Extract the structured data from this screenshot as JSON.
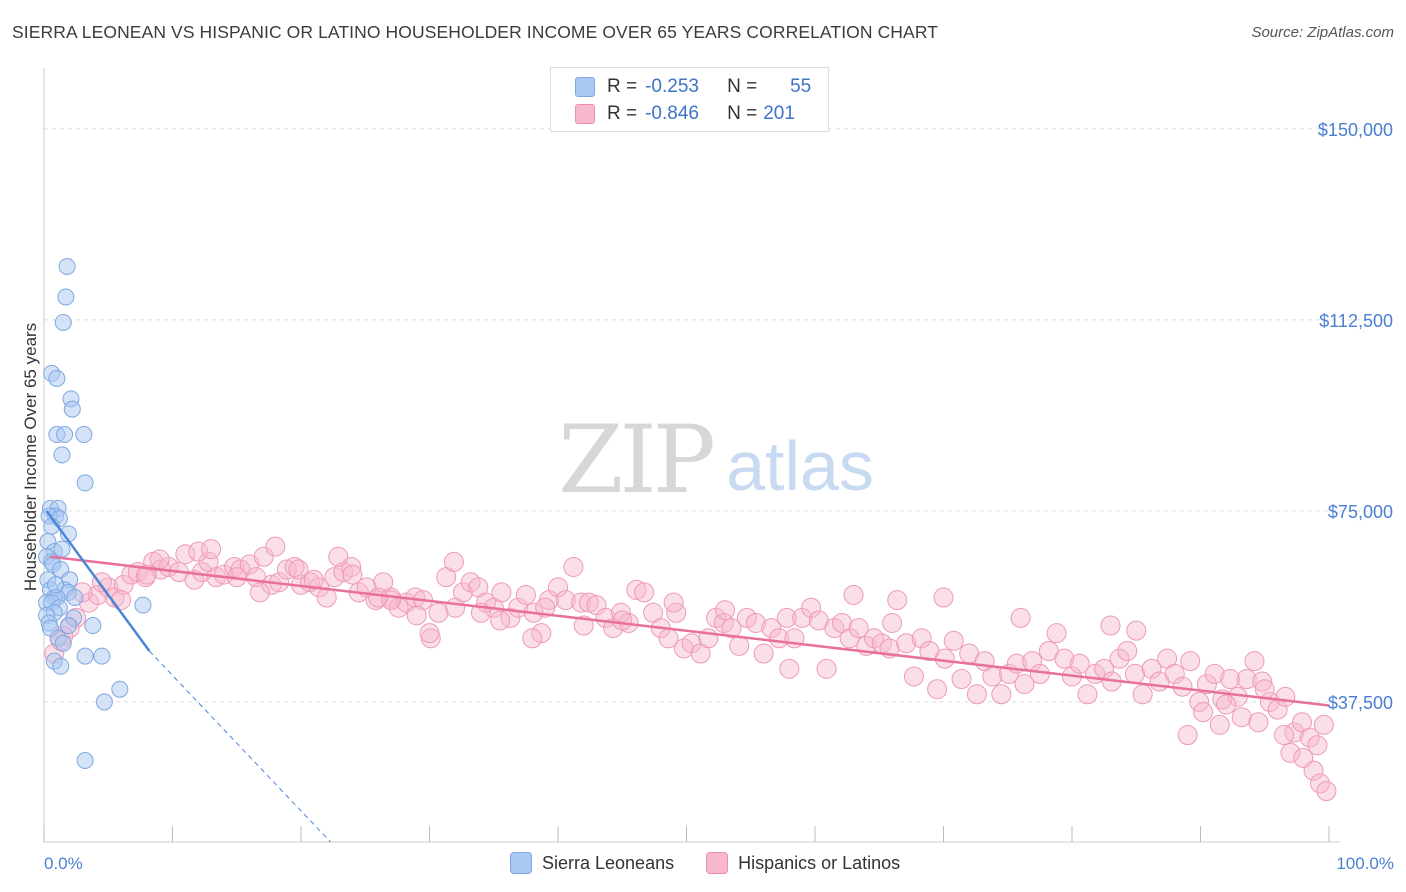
{
  "title": "SIERRA LEONEAN VS HISPANIC OR LATINO HOUSEHOLDER INCOME OVER 65 YEARS CORRELATION CHART",
  "source": "Source: ZipAtlas.com",
  "watermark": {
    "zip": "ZIP",
    "atlas": "atlas"
  },
  "legend": {
    "rows": [
      {
        "r_label": "R =",
        "r_value": "-0.253",
        "n_label": "N =",
        "n_value": "55",
        "color": "#a9c8f2"
      },
      {
        "r_label": "R =",
        "r_value": "-0.846",
        "n_label": "N =",
        "n_value": "201",
        "color": "#f7b8cc"
      }
    ]
  },
  "bottom_legend": [
    {
      "label": "Sierra Leoneans",
      "color": "#a9c8f2"
    },
    {
      "label": "Hispanics or Latinos",
      "color": "#f7b8cc"
    }
  ],
  "colors": {
    "blue": "#4a86d8",
    "pink": "#e8709a",
    "axis_text": "#4a7fd4",
    "grid": "#dddddd"
  },
  "chart_data": {
    "type": "scatter",
    "title": "SIERRA LEONEAN VS HISPANIC OR LATINO HOUSEHOLDER INCOME OVER 65 YEARS CORRELATION CHART",
    "xlabel": "",
    "ylabel": "Householder Income Over 65 years",
    "xlim": [
      0,
      100
    ],
    "ylim": [
      10000,
      160000
    ],
    "x_tick_labels": [
      "0.0%",
      "100.0%"
    ],
    "y_ticks": [
      37500,
      75000,
      112500,
      150000
    ],
    "y_tick_labels": [
      "$37,500",
      "$75,000",
      "$112,500",
      "$150,000"
    ],
    "grid": "horizontal dashed",
    "legend_position": "top-center",
    "series": [
      {
        "name": "Sierra Leoneans",
        "color": "#a9c8f2",
        "r": -0.253,
        "n": 55,
        "trend": {
          "x0": 0.2,
          "y0": 75000,
          "x1": 8.2,
          "y1": 47500,
          "dashed_to_x": 22.3,
          "dashed_to_y": 10000
        },
        "points": [
          [
            1.8,
            123000
          ],
          [
            1.7,
            117000
          ],
          [
            1.5,
            112000
          ],
          [
            0.6,
            102000
          ],
          [
            1.0,
            101000
          ],
          [
            2.1,
            97000
          ],
          [
            2.2,
            95000
          ],
          [
            1.0,
            90000
          ],
          [
            1.6,
            90000
          ],
          [
            3.1,
            90000
          ],
          [
            1.4,
            86000
          ],
          [
            3.2,
            80500
          ],
          [
            0.5,
            75500
          ],
          [
            1.1,
            75500
          ],
          [
            0.9,
            74000
          ],
          [
            0.4,
            74000
          ],
          [
            1.2,
            73500
          ],
          [
            0.6,
            72000
          ],
          [
            1.9,
            70500
          ],
          [
            0.3,
            69000
          ],
          [
            0.8,
            67000
          ],
          [
            1.4,
            67500
          ],
          [
            0.2,
            66000
          ],
          [
            0.6,
            65000
          ],
          [
            0.7,
            64500
          ],
          [
            1.3,
            63500
          ],
          [
            0.3,
            61500
          ],
          [
            2.0,
            61500
          ],
          [
            0.5,
            59500
          ],
          [
            1.6,
            59500
          ],
          [
            1.9,
            59000
          ],
          [
            0.8,
            58000
          ],
          [
            2.4,
            58000
          ],
          [
            1.0,
            58000
          ],
          [
            0.2,
            57000
          ],
          [
            0.6,
            57000
          ],
          [
            1.2,
            56000
          ],
          [
            0.8,
            55000
          ],
          [
            0.2,
            54500
          ],
          [
            2.3,
            54000
          ],
          [
            0.4,
            53000
          ],
          [
            1.9,
            52500
          ],
          [
            3.8,
            52500
          ],
          [
            7.7,
            56500
          ],
          [
            0.5,
            52000
          ],
          [
            1.1,
            50000
          ],
          [
            1.5,
            49000
          ],
          [
            3.2,
            46500
          ],
          [
            4.5,
            46500
          ],
          [
            0.8,
            45500
          ],
          [
            1.3,
            44500
          ],
          [
            5.9,
            40000
          ],
          [
            4.7,
            37500
          ],
          [
            3.2,
            26000
          ],
          [
            0.9,
            60500
          ]
        ]
      },
      {
        "name": "Hispanics or Latinos",
        "color": "#f7b8cc",
        "r": -0.846,
        "n": 201,
        "trend": {
          "x0": 0.5,
          "y0": 66000,
          "x1": 100,
          "y1": 36800
        },
        "points": [
          [
            0.8,
            47000
          ],
          [
            1.3,
            49500
          ],
          [
            2.5,
            54000
          ],
          [
            3.5,
            57000
          ],
          [
            4.2,
            58500
          ],
          [
            5.0,
            60000
          ],
          [
            5.5,
            58000
          ],
          [
            6.2,
            60500
          ],
          [
            6.8,
            62500
          ],
          [
            7.3,
            63000
          ],
          [
            7.9,
            62000
          ],
          [
            8.5,
            65000
          ],
          [
            9.1,
            63500
          ],
          [
            9.7,
            64000
          ],
          [
            10.5,
            63000
          ],
          [
            11.0,
            66500
          ],
          [
            11.7,
            61500
          ],
          [
            12.3,
            63000
          ],
          [
            12.8,
            65000
          ],
          [
            13.4,
            62000
          ],
          [
            14.0,
            62500
          ],
          [
            14.8,
            64000
          ],
          [
            15.3,
            63500
          ],
          [
            16.0,
            64500
          ],
          [
            16.5,
            62000
          ],
          [
            17.1,
            66000
          ],
          [
            17.7,
            60500
          ],
          [
            18.3,
            61000
          ],
          [
            18.9,
            63500
          ],
          [
            19.5,
            64000
          ],
          [
            20.0,
            60500
          ],
          [
            20.7,
            61000
          ],
          [
            21.4,
            60000
          ],
          [
            22.0,
            58000
          ],
          [
            22.6,
            62000
          ],
          [
            23.3,
            63000
          ],
          [
            23.9,
            64000
          ],
          [
            24.5,
            59000
          ],
          [
            25.1,
            60000
          ],
          [
            25.8,
            57500
          ],
          [
            26.4,
            61000
          ],
          [
            27.0,
            58000
          ],
          [
            27.6,
            56000
          ],
          [
            28.2,
            57000
          ],
          [
            28.9,
            58000
          ],
          [
            29.5,
            57500
          ],
          [
            30.1,
            50000
          ],
          [
            30.7,
            55000
          ],
          [
            31.3,
            62000
          ],
          [
            31.9,
            65000
          ],
          [
            32.6,
            59000
          ],
          [
            33.2,
            61000
          ],
          [
            33.8,
            60000
          ],
          [
            34.4,
            57000
          ],
          [
            35.0,
            56000
          ],
          [
            35.6,
            59000
          ],
          [
            36.3,
            54000
          ],
          [
            36.9,
            56000
          ],
          [
            37.5,
            58500
          ],
          [
            38.1,
            55000
          ],
          [
            38.7,
            51000
          ],
          [
            39.3,
            57500
          ],
          [
            40.0,
            60000
          ],
          [
            40.6,
            57500
          ],
          [
            41.2,
            64000
          ],
          [
            41.8,
            57000
          ],
          [
            42.4,
            57000
          ],
          [
            43.0,
            56500
          ],
          [
            43.7,
            54000
          ],
          [
            44.3,
            52000
          ],
          [
            44.9,
            55000
          ],
          [
            45.5,
            53000
          ],
          [
            46.1,
            59500
          ],
          [
            46.7,
            59000
          ],
          [
            47.4,
            55000
          ],
          [
            48.0,
            52000
          ],
          [
            48.6,
            50000
          ],
          [
            49.2,
            55000
          ],
          [
            49.8,
            48000
          ],
          [
            50.4,
            49000
          ],
          [
            51.1,
            47000
          ],
          [
            51.7,
            50000
          ],
          [
            52.3,
            54000
          ],
          [
            52.9,
            53000
          ],
          [
            53.5,
            52000
          ],
          [
            54.1,
            48500
          ],
          [
            54.7,
            54000
          ],
          [
            55.4,
            53000
          ],
          [
            56.0,
            47000
          ],
          [
            56.6,
            52000
          ],
          [
            57.2,
            50000
          ],
          [
            57.8,
            54000
          ],
          [
            58.4,
            50000
          ],
          [
            59.0,
            54000
          ],
          [
            59.7,
            56000
          ],
          [
            60.3,
            53500
          ],
          [
            60.9,
            44000
          ],
          [
            61.5,
            52000
          ],
          [
            62.1,
            53000
          ],
          [
            62.7,
            50000
          ],
          [
            63.4,
            52000
          ],
          [
            64.0,
            48500
          ],
          [
            64.6,
            50000
          ],
          [
            65.2,
            49000
          ],
          [
            65.8,
            48000
          ],
          [
            66.4,
            57500
          ],
          [
            67.1,
            49000
          ],
          [
            67.7,
            42500
          ],
          [
            68.3,
            50000
          ],
          [
            68.9,
            47500
          ],
          [
            69.5,
            40000
          ],
          [
            70.1,
            46000
          ],
          [
            70.8,
            49500
          ],
          [
            71.4,
            42000
          ],
          [
            72.0,
            47000
          ],
          [
            72.6,
            39000
          ],
          [
            73.2,
            45500
          ],
          [
            73.8,
            42500
          ],
          [
            74.5,
            39000
          ],
          [
            75.1,
            43000
          ],
          [
            75.7,
            45000
          ],
          [
            76.3,
            41000
          ],
          [
            76.9,
            45500
          ],
          [
            77.5,
            43000
          ],
          [
            78.2,
            47500
          ],
          [
            78.8,
            51000
          ],
          [
            79.4,
            46000
          ],
          [
            80.0,
            42500
          ],
          [
            80.6,
            45000
          ],
          [
            81.2,
            39000
          ],
          [
            81.8,
            43000
          ],
          [
            82.5,
            44000
          ],
          [
            83.1,
            41500
          ],
          [
            83.7,
            46000
          ],
          [
            84.3,
            47500
          ],
          [
            84.9,
            43000
          ],
          [
            85.5,
            39000
          ],
          [
            86.2,
            44000
          ],
          [
            86.8,
            41500
          ],
          [
            87.4,
            46000
          ],
          [
            88.0,
            43000
          ],
          [
            88.6,
            40500
          ],
          [
            89.2,
            45500
          ],
          [
            89.9,
            37500
          ],
          [
            90.5,
            41000
          ],
          [
            91.1,
            43000
          ],
          [
            91.7,
            38000
          ],
          [
            92.3,
            42000
          ],
          [
            92.9,
            38500
          ],
          [
            93.6,
            42000
          ],
          [
            94.2,
            45500
          ],
          [
            94.8,
            41500
          ],
          [
            95.4,
            37500
          ],
          [
            96.0,
            36000
          ],
          [
            96.6,
            38500
          ],
          [
            97.3,
            31500
          ],
          [
            97.9,
            33500
          ],
          [
            98.5,
            30500
          ],
          [
            99.1,
            29000
          ],
          [
            99.6,
            33000
          ],
          [
            95.0,
            40000
          ],
          [
            93.2,
            34500
          ],
          [
            92.0,
            37000
          ],
          [
            91.5,
            33000
          ],
          [
            90.2,
            35500
          ],
          [
            89.0,
            31000
          ],
          [
            97.0,
            27500
          ],
          [
            98.0,
            26500
          ],
          [
            98.8,
            24000
          ],
          [
            99.3,
            21500
          ],
          [
            99.8,
            20000
          ],
          [
            96.5,
            31000
          ],
          [
            94.5,
            33500
          ],
          [
            85.0,
            51500
          ],
          [
            83.0,
            52500
          ],
          [
            76.0,
            54000
          ],
          [
            70.0,
            58000
          ],
          [
            66.0,
            53000
          ],
          [
            63.0,
            58500
          ],
          [
            58.0,
            44000
          ],
          [
            53.0,
            55500
          ],
          [
            49.0,
            57000
          ],
          [
            45.0,
            53500
          ],
          [
            42.0,
            52500
          ],
          [
            38.0,
            50000
          ],
          [
            34.0,
            55000
          ],
          [
            30.0,
            51000
          ],
          [
            27.0,
            57500
          ],
          [
            24.0,
            62500
          ],
          [
            21.0,
            61500
          ],
          [
            18.0,
            68000
          ],
          [
            15.0,
            62000
          ],
          [
            12.0,
            67000
          ],
          [
            9.0,
            65500
          ],
          [
            6.0,
            57500
          ],
          [
            3.0,
            59000
          ],
          [
            2.0,
            52000
          ],
          [
            1.5,
            50500
          ],
          [
            4.5,
            61000
          ],
          [
            8.0,
            62500
          ],
          [
            13.0,
            67500
          ],
          [
            16.8,
            59000
          ],
          [
            19.8,
            63500
          ],
          [
            22.9,
            66000
          ],
          [
            26.0,
            58000
          ],
          [
            29.0,
            54500
          ],
          [
            32.0,
            56000
          ],
          [
            35.5,
            53500
          ],
          [
            39.0,
            56000
          ]
        ]
      }
    ]
  }
}
